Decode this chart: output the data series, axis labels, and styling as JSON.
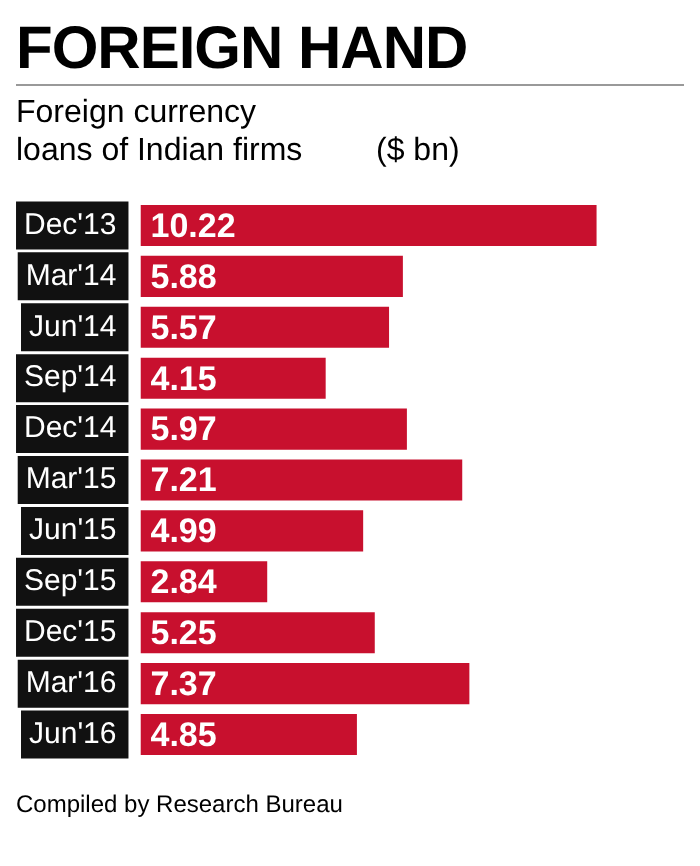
{
  "chart_data": {
    "type": "bar",
    "orientation": "horizontal",
    "title": "FOREIGN HAND",
    "subtitle": "Foreign currency loans of Indian firms",
    "xlabel": "($ bn)",
    "categories": [
      "Dec'13",
      "Mar'14",
      "Jun'14",
      "Sep'14",
      "Dec'14",
      "Mar'15",
      "Jun'15",
      "Sep'15",
      "Dec'15",
      "Mar'16",
      "Jun'16"
    ],
    "values": [
      10.22,
      5.88,
      5.57,
      4.15,
      5.97,
      7.21,
      4.99,
      2.84,
      5.25,
      7.37,
      4.85
    ],
    "color": "#c8102e",
    "data_labels": true,
    "legend": false,
    "annotations": [
      "Compiled by Research Bureau"
    ]
  }
}
